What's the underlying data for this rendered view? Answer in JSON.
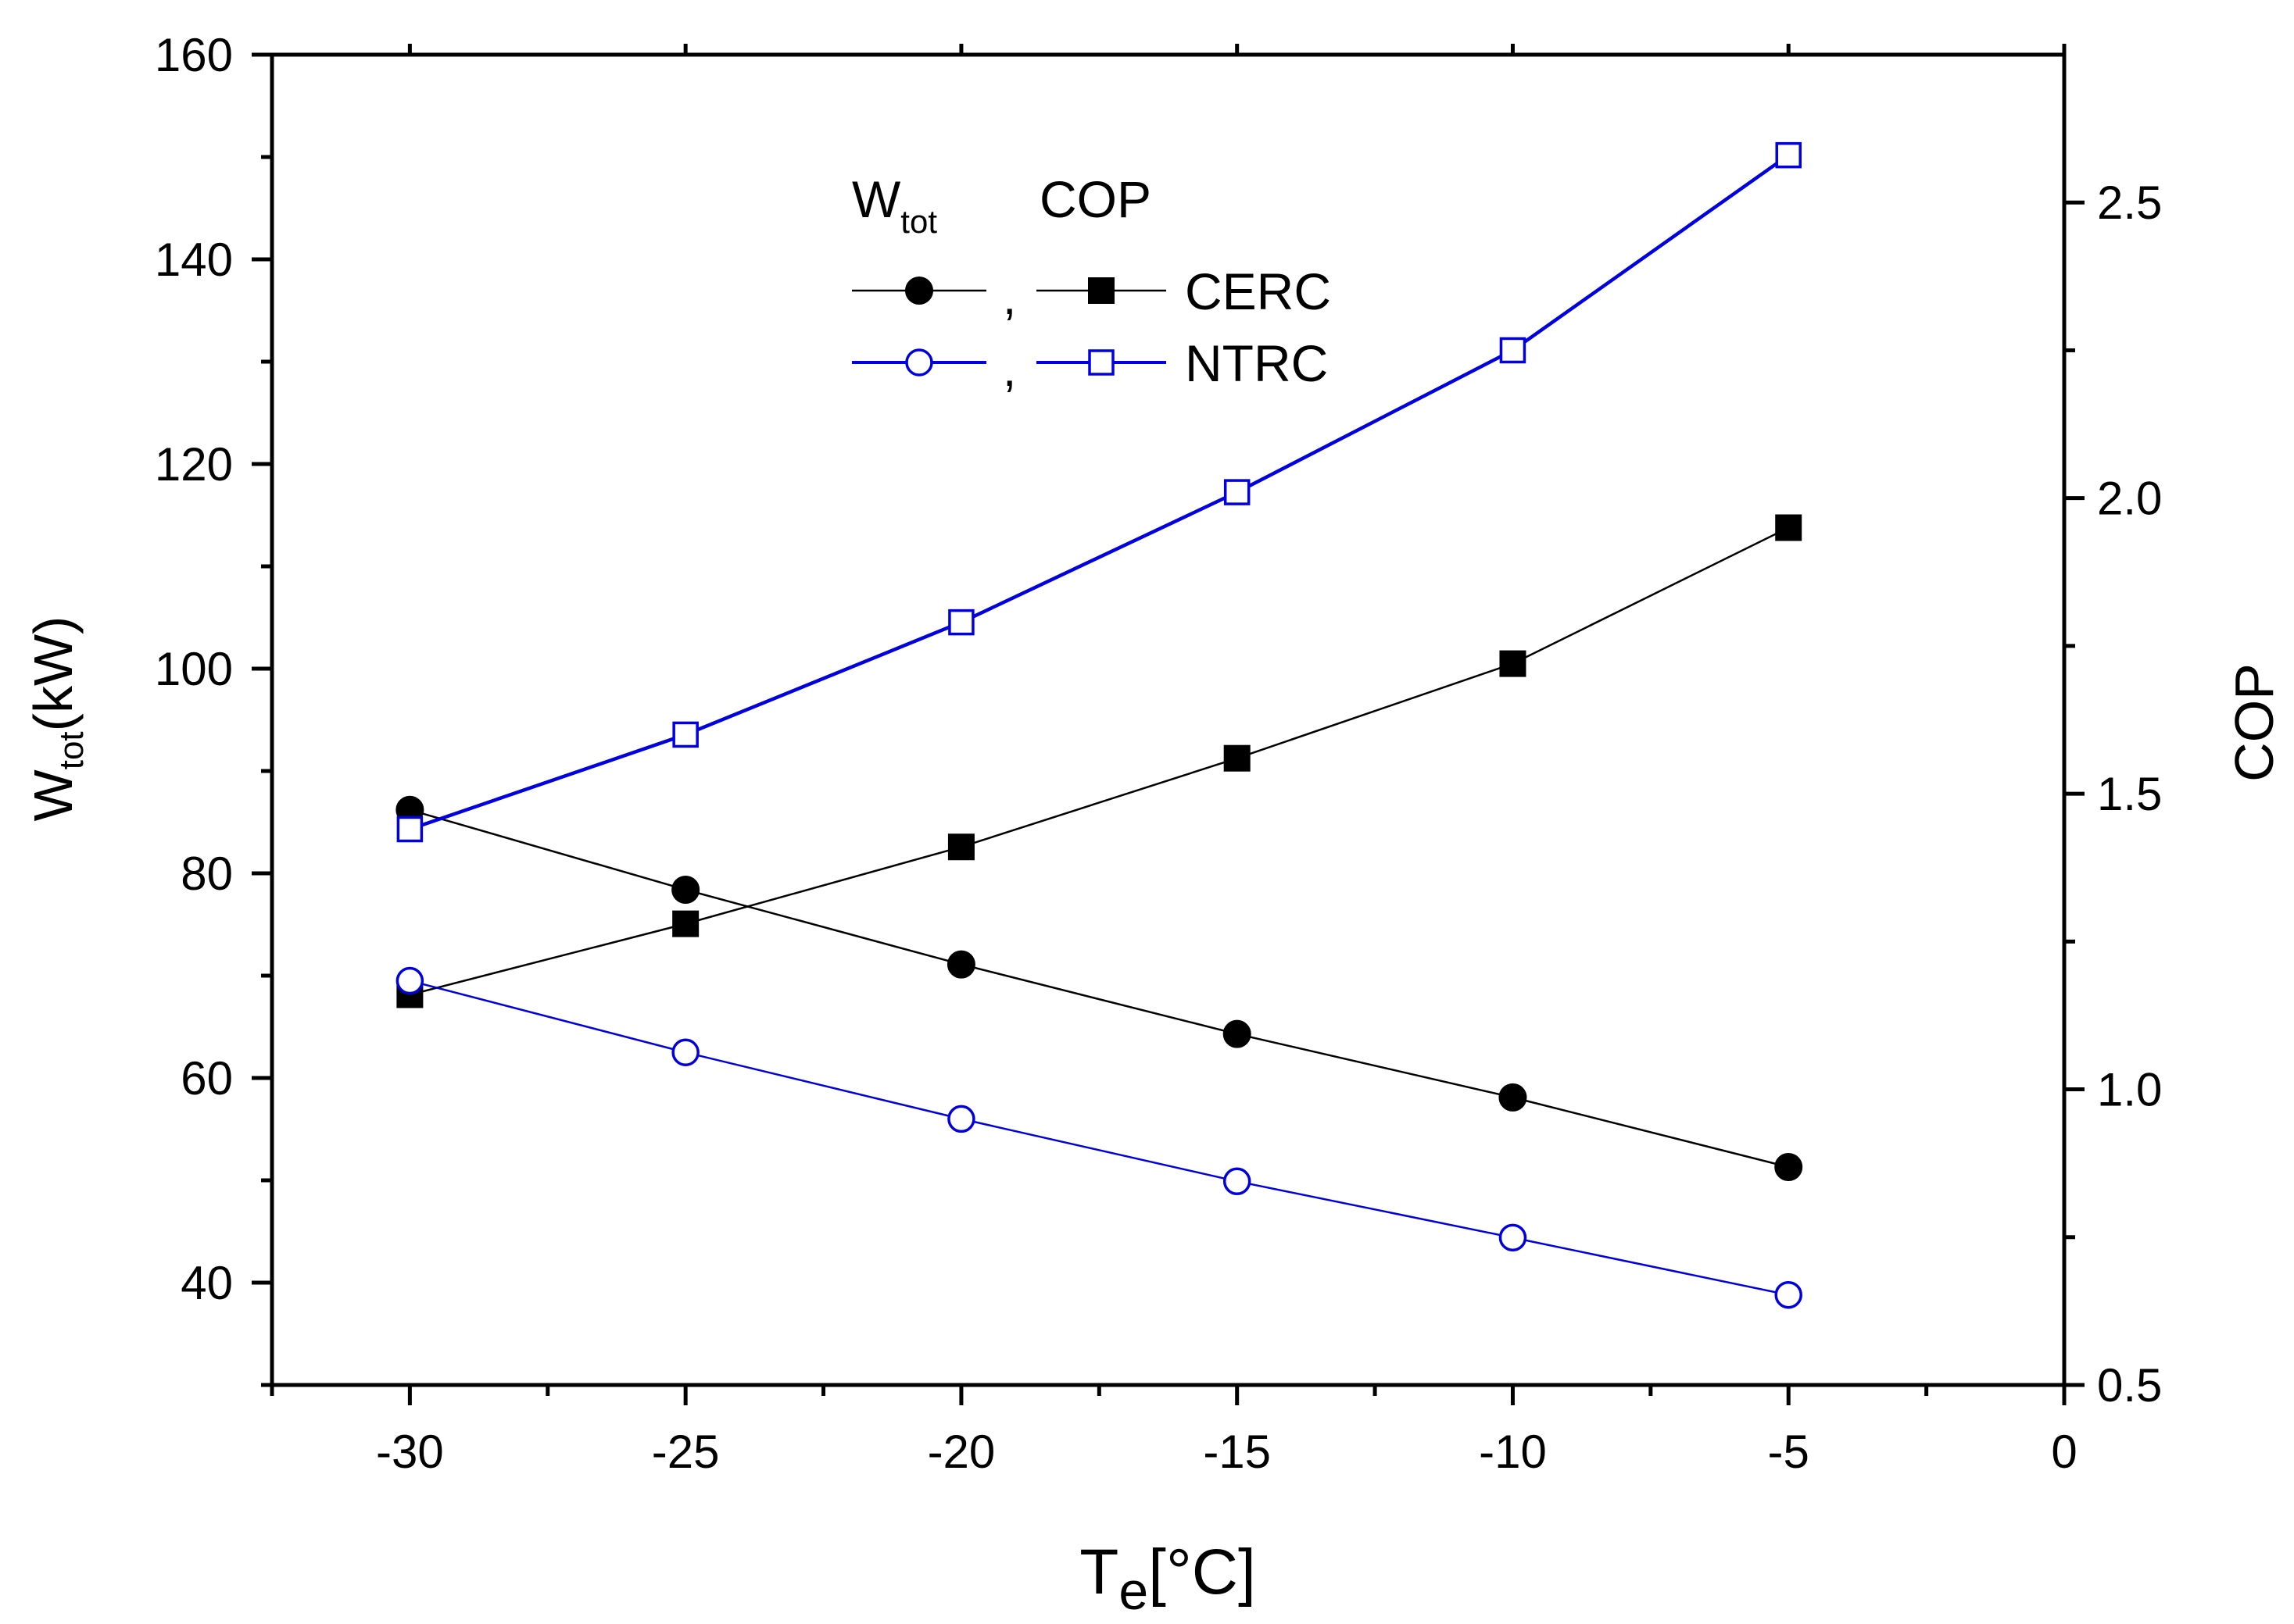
{
  "chart_data": {
    "type": "line",
    "x_axis": {
      "label_main": "T",
      "label_sub": "e",
      "label_unit": "[°C]",
      "range": [
        -32.5,
        0
      ],
      "ticks": [
        -30,
        -25,
        -20,
        -15,
        -10,
        -5,
        0
      ],
      "tick_labels": [
        "-30",
        "-25",
        "-20",
        "-15",
        "-10",
        "-5",
        "0"
      ]
    },
    "y_left_axis": {
      "label_main": "W",
      "label_sub": "tot",
      "label_unit": "(kW)",
      "range": [
        30,
        160
      ],
      "ticks": [
        40,
        60,
        80,
        100,
        120,
        140,
        160
      ],
      "tick_labels": [
        "40",
        "60",
        "80",
        "100",
        "120",
        "140",
        "160"
      ]
    },
    "y_right_axis": {
      "label": "COP",
      "range": [
        0.5,
        2.75
      ],
      "ticks": [
        0.5,
        1.0,
        1.5,
        2.0,
        2.5
      ],
      "tick_labels": [
        "0.5",
        "1.0",
        "1.5",
        "2.0",
        "2.5"
      ]
    },
    "x": [
      -30,
      -25,
      -20,
      -15,
      -10,
      -5
    ],
    "series": [
      {
        "name": "CERC W_tot",
        "axis": "left",
        "marker": "filled-circle",
        "color": "#000000",
        "values": [
          86.2,
          78.4,
          71.1,
          64.3,
          58.1,
          51.3
        ]
      },
      {
        "name": "CERC COP",
        "axis": "right",
        "marker": "filled-square",
        "color": "#000000",
        "values": [
          1.16,
          1.28,
          1.41,
          1.56,
          1.72,
          1.95
        ]
      },
      {
        "name": "NTRC W_tot",
        "axis": "left",
        "marker": "open-circle",
        "color": "#0000e0",
        "values": [
          69.5,
          62.5,
          56.0,
          49.9,
          44.4,
          38.8
        ]
      },
      {
        "name": "NTRC COP",
        "axis": "right",
        "marker": "open-square",
        "color": "#0000e0",
        "values": [
          1.44,
          1.6,
          1.79,
          2.01,
          2.25,
          2.58
        ]
      }
    ],
    "legend": {
      "placement": "top-center",
      "header_w_main": "W",
      "header_w_sub": "tot",
      "header_cop": "COP",
      "separator": ",",
      "rows": [
        {
          "label": "CERC",
          "color": "#000000",
          "markers": [
            "filled-circle",
            "filled-square"
          ]
        },
        {
          "label": "NTRC",
          "color": "#0000e0",
          "markers": [
            "open-circle",
            "open-square"
          ]
        }
      ]
    }
  }
}
